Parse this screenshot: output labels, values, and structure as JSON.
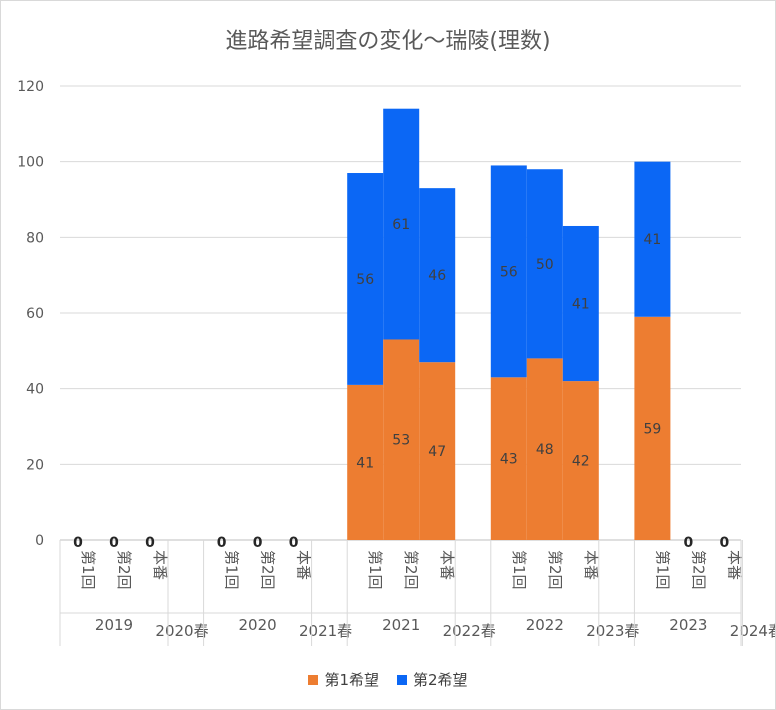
{
  "chart_data": {
    "type": "bar",
    "stacked": true,
    "title": "進路希望調査の変化～瑞陵(理数)",
    "ylim": [
      0,
      120
    ],
    "yticks": [
      0,
      20,
      40,
      60,
      80,
      100,
      120
    ],
    "grid": true,
    "legend_position": "bottom",
    "groups": [
      {
        "label": "2019",
        "season": "2020春",
        "categories": [
          "第1回",
          "第2回",
          "本番"
        ]
      },
      {
        "label": "2020",
        "season": "2021春",
        "categories": [
          "第1回",
          "第2回",
          "本番"
        ]
      },
      {
        "label": "2021",
        "season": "2022春",
        "categories": [
          "第1回",
          "第2回",
          "本番"
        ]
      },
      {
        "label": "2022",
        "season": "2023春",
        "categories": [
          "第1回",
          "第2回",
          "本番"
        ]
      },
      {
        "label": "2023",
        "season": "2024春",
        "categories": [
          "第1回",
          "第2回",
          "本番"
        ]
      }
    ],
    "series": [
      {
        "name": "第1希望",
        "color": "#ED7D31",
        "values": [
          0,
          0,
          0,
          0,
          0,
          0,
          41,
          53,
          47,
          43,
          48,
          42,
          59,
          0,
          0
        ]
      },
      {
        "name": "第2希望",
        "color": "#0B67F5",
        "values": [
          null,
          null,
          null,
          null,
          null,
          null,
          56,
          61,
          46,
          56,
          50,
          41,
          41,
          null,
          null
        ]
      }
    ],
    "zero_labels": [
      "0",
      "0",
      "0",
      "0",
      "0",
      "0",
      "0",
      "0"
    ]
  }
}
